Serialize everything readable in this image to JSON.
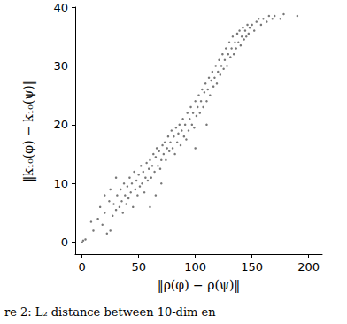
{
  "chart_data": {
    "type": "scatter",
    "title": "re 2: L₂ distance between 10-dim en",
    "x_label": "‖ρ(φ) − ρ(ψ)‖",
    "y_label": "‖k₁₀(φ) − k₁₀(ψ)‖",
    "color": "#555555",
    "marker": "circle",
    "grid": false,
    "xlim": [
      -6,
      212
    ],
    "ylim": [
      -2,
      40
    ],
    "xticks": [
      0,
      50,
      100,
      150,
      200
    ],
    "yticks": [
      0,
      10,
      20,
      30,
      40
    ],
    "x": [
      0,
      1,
      3,
      8,
      10,
      14,
      16,
      18,
      20,
      22,
      24,
      25,
      27,
      28,
      30,
      31,
      33,
      34,
      35,
      36,
      37,
      38,
      39,
      40,
      41,
      42,
      43,
      44,
      45,
      46,
      47,
      48,
      49,
      50,
      51,
      52,
      53,
      54,
      55,
      56,
      57,
      58,
      59,
      60,
      61,
      62,
      63,
      64,
      65,
      66,
      67,
      68,
      69,
      70,
      71,
      72,
      73,
      74,
      75,
      76,
      77,
      78,
      79,
      80,
      81,
      82,
      83,
      84,
      85,
      86,
      87,
      88,
      89,
      90,
      91,
      92,
      93,
      94,
      95,
      96,
      97,
      98,
      99,
      100,
      101,
      102,
      103,
      104,
      105,
      106,
      107,
      108,
      109,
      110,
      111,
      112,
      113,
      114,
      115,
      116,
      117,
      118,
      119,
      120,
      121,
      122,
      123,
      124,
      125,
      126,
      127,
      128,
      129,
      130,
      131,
      132,
      133,
      134,
      135,
      136,
      137,
      138,
      139,
      140,
      141,
      142,
      143,
      144,
      145,
      146,
      147,
      148,
      150,
      152,
      154,
      156,
      158,
      160,
      163,
      165,
      168,
      170,
      175,
      178,
      190,
      20,
      25,
      30,
      60,
      65,
      70,
      100,
      110
    ],
    "values": [
      0,
      0.3,
      0.5,
      3.5,
      2,
      4,
      6,
      3,
      5,
      1.5,
      7,
      2,
      4.5,
      6.5,
      5.5,
      8,
      6,
      9,
      7,
      5,
      10,
      8,
      6.5,
      9.5,
      7.5,
      11,
      8.5,
      10,
      6,
      12,
      9,
      10.5,
      8,
      11.5,
      9.5,
      13,
      10,
      12,
      8.5,
      11,
      13.5,
      10.5,
      12.5,
      14,
      11,
      13,
      15,
      12,
      14.5,
      16,
      13,
      15.5,
      12.5,
      14,
      16.5,
      15,
      17,
      14,
      16,
      18,
      15.5,
      17,
      19,
      16,
      18,
      15,
      19.5,
      17,
      18.5,
      20,
      16.5,
      19,
      21,
      18,
      20,
      17.5,
      22,
      19,
      21,
      23,
      20,
      22,
      19.5,
      24,
      21.5,
      23,
      25,
      22,
      24,
      26,
      23,
      25.5,
      27,
      24,
      26,
      28,
      25,
      27.5,
      29,
      26.5,
      28,
      30,
      27,
      29,
      31,
      28.5,
      30,
      32,
      29.5,
      31,
      33,
      30,
      32,
      34,
      31.5,
      33,
      35,
      32,
      34,
      33,
      35.5,
      34,
      36,
      33.5,
      35,
      36.5,
      34.5,
      36,
      35,
      37,
      35.5,
      36.5,
      37,
      36,
      37.5,
      38,
      37,
      38,
      37.5,
      38.5,
      38,
      38.5,
      38,
      38.8,
      38.5,
      8,
      9,
      11,
      6,
      8,
      10,
      16,
      20
    ]
  }
}
